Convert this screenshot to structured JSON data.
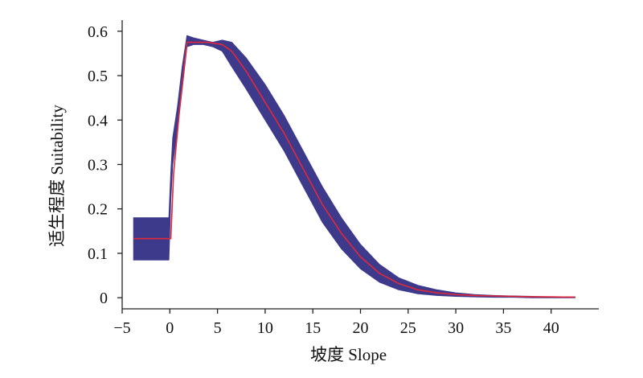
{
  "chart_data": {
    "type": "line",
    "title": "",
    "xlabel": "坡度 Slope",
    "ylabel": "适生程度 Suitability",
    "xlim": [
      -5,
      45
    ],
    "ylim": [
      -0.025,
      0.625
    ],
    "grid": false,
    "legend": "none",
    "x_ticks": [
      -5,
      0,
      5,
      10,
      15,
      20,
      25,
      30,
      35,
      40
    ],
    "y_ticks": [
      0,
      0.1,
      0.2,
      0.3,
      0.4,
      0.5,
      0.6
    ],
    "colors": {
      "band": "#3d3a8c",
      "line": "#e0283a",
      "axis": "#222222"
    },
    "series": [
      {
        "kind": "confidence-band",
        "x": [
          -3.8,
          -0.1,
          0.1,
          0.3,
          0.8,
          1.3,
          1.8,
          2.5,
          3.5,
          4.5,
          5.5,
          6.5,
          8,
          10,
          12,
          14,
          16,
          18,
          20,
          22,
          24,
          26,
          28,
          30,
          32,
          34,
          36,
          38,
          40,
          42.5
        ],
        "upper": [
          0.18,
          0.18,
          0.28,
          0.36,
          0.43,
          0.52,
          0.59,
          0.585,
          0.58,
          0.575,
          0.58,
          0.575,
          0.54,
          0.48,
          0.41,
          0.33,
          0.25,
          0.18,
          0.12,
          0.075,
          0.045,
          0.028,
          0.018,
          0.011,
          0.007,
          0.005,
          0.004,
          0.003,
          0.002,
          0.002
        ],
        "lower": [
          0.085,
          0.085,
          0.22,
          0.3,
          0.38,
          0.47,
          0.565,
          0.57,
          0.57,
          0.565,
          0.555,
          0.52,
          0.47,
          0.4,
          0.33,
          0.25,
          0.17,
          0.11,
          0.065,
          0.035,
          0.018,
          0.009,
          0.005,
          0.003,
          0.002,
          0.001,
          0.001,
          0,
          0,
          0
        ]
      },
      {
        "kind": "line",
        "x": [
          -3.8,
          0.1,
          0.4,
          1,
          1.8,
          2.5,
          4,
          5.5,
          6.5,
          8,
          10,
          12,
          14,
          16,
          18,
          20,
          22,
          24,
          26,
          28,
          30,
          32,
          34,
          36,
          38,
          40,
          42.5
        ],
        "y": [
          0.133,
          0.133,
          0.28,
          0.42,
          0.575,
          0.575,
          0.575,
          0.57,
          0.555,
          0.51,
          0.44,
          0.37,
          0.29,
          0.21,
          0.145,
          0.092,
          0.055,
          0.032,
          0.018,
          0.011,
          0.007,
          0.005,
          0.004,
          0.003,
          0.002,
          0.002,
          0.001
        ]
      }
    ]
  }
}
